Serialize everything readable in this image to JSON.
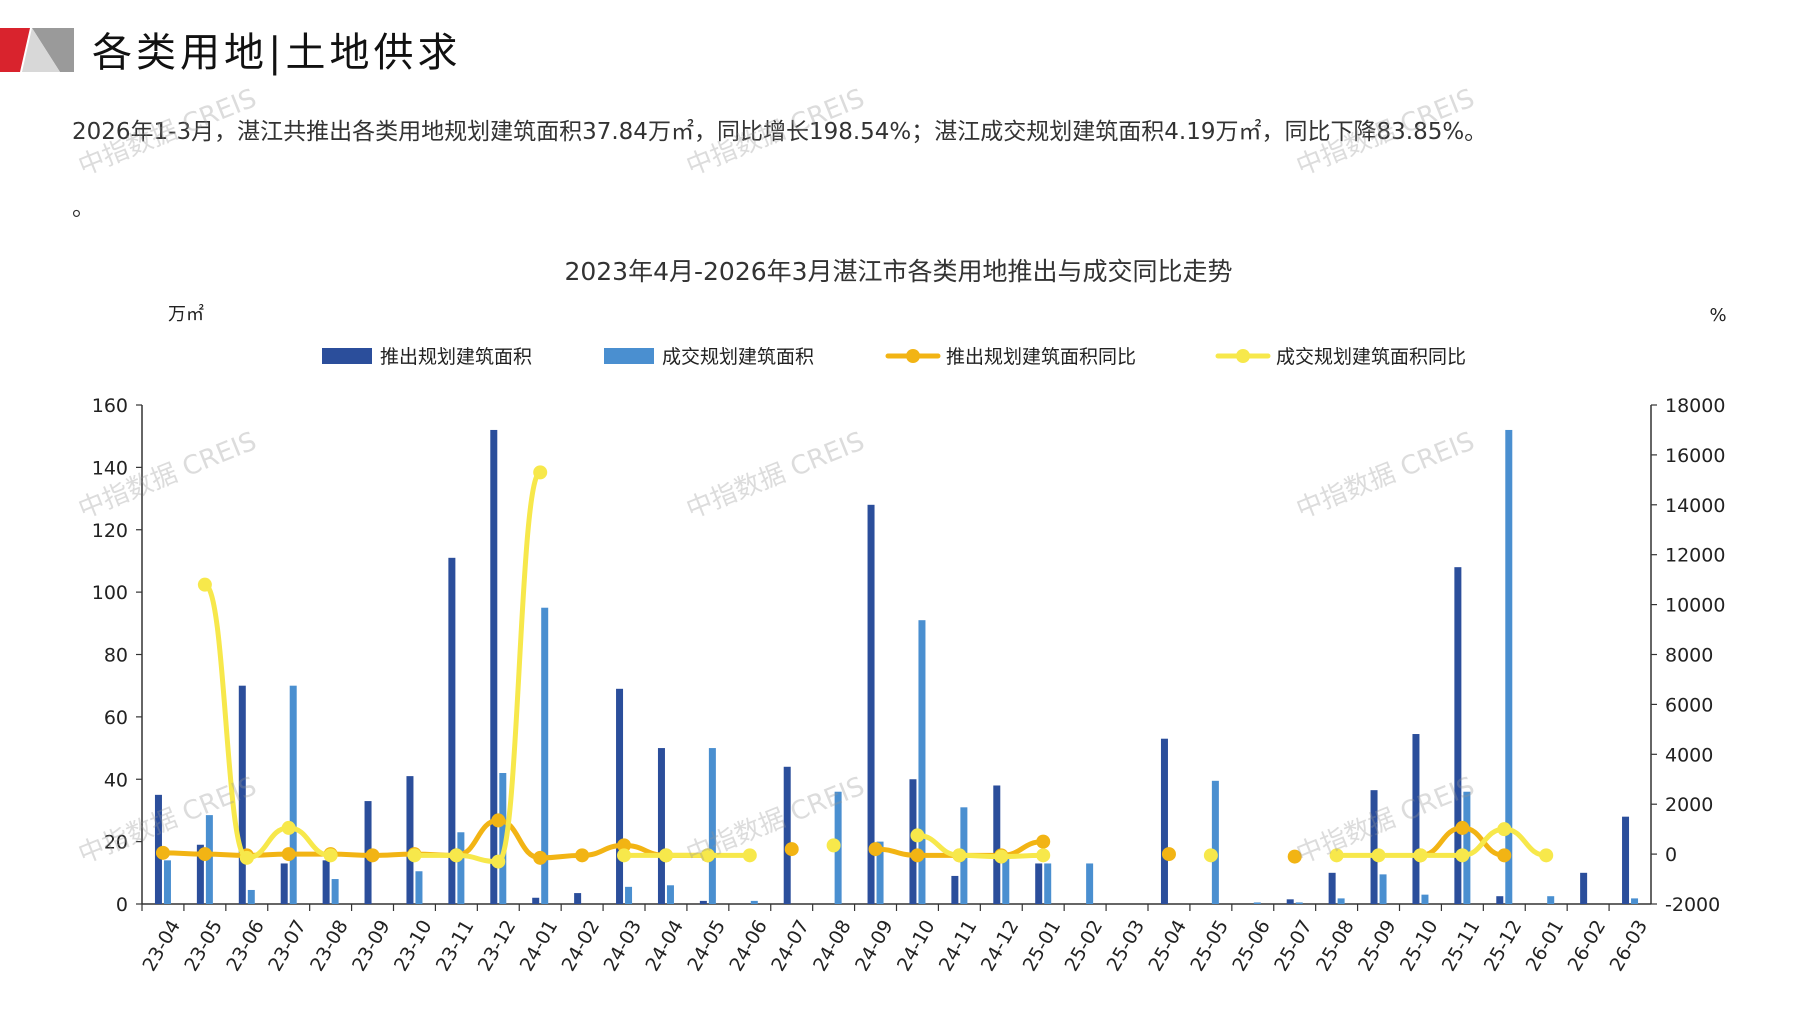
{
  "page": {
    "title": "各类用地|土地供求",
    "summary": "2026年1-3月，湛江共推出各类用地规划建筑面积37.84万㎡，同比增长198.54%；湛江成交规划建筑面积4.19万㎡，同比下降83.85%。",
    "summary_tail": "。",
    "watermark": "中指数据 CREIS"
  },
  "colors": {
    "supply_bar": "#2b4e9b",
    "deal_bar": "#4a8fd0",
    "supply_yoy": "#f2b414",
    "deal_yoy": "#f7e84b",
    "axis": "#333333",
    "logo_red": "#d9232d",
    "logo_gray": "#9a9a9a"
  },
  "chart_data": {
    "type": "bar",
    "title": "2023年4月-2026年3月湛江市各类用地推出与成交同比走势",
    "ylabel_left": "万㎡",
    "ylabel_right": "%",
    "ylim_left": [
      0,
      160
    ],
    "yticks_left": [
      0,
      20,
      40,
      60,
      80,
      100,
      120,
      140,
      160
    ],
    "ylim_right": [
      -2000,
      18000
    ],
    "yticks_right": [
      -2000,
      0,
      2000,
      4000,
      6000,
      8000,
      10000,
      12000,
      14000,
      16000,
      18000
    ],
    "legend_position": "top-center",
    "categories": [
      "23-04",
      "23-05",
      "23-06",
      "23-07",
      "23-08",
      "23-09",
      "23-10",
      "23-11",
      "23-12",
      "24-01",
      "24-02",
      "24-03",
      "24-04",
      "24-05",
      "24-06",
      "24-07",
      "24-08",
      "24-09",
      "24-10",
      "24-11",
      "24-12",
      "25-01",
      "25-02",
      "25-03",
      "25-04",
      "25-05",
      "25-06",
      "25-07",
      "25-08",
      "25-09",
      "25-10",
      "25-11",
      "25-12",
      "26-01",
      "26-02",
      "26-03"
    ],
    "series": [
      {
        "name": "推出规划建筑面积",
        "kind": "bar",
        "axis": "left",
        "values": [
          35,
          19,
          70,
          13,
          14,
          33,
          41,
          111,
          152,
          2,
          3.5,
          69,
          50,
          1,
          0,
          44,
          0,
          128,
          40,
          9,
          38,
          13,
          0,
          0,
          53,
          0,
          0,
          1.5,
          10,
          36.5,
          54.5,
          108,
          2.5,
          0,
          10,
          28
        ]
      },
      {
        "name": "成交规划建筑面积",
        "kind": "bar",
        "axis": "left",
        "values": [
          14,
          28.5,
          4.5,
          70,
          8,
          0,
          10.5,
          23,
          42,
          95,
          0,
          5.5,
          6,
          50,
          1,
          0,
          36,
          20,
          91,
          31,
          15,
          13,
          13,
          0,
          0,
          39.5,
          0.5,
          0.5,
          1.8,
          9.5,
          3,
          36,
          152,
          2.5,
          0,
          1.8
        ]
      },
      {
        "name": "推出规划建筑面积同比",
        "kind": "line",
        "axis": "right",
        "values": [
          50,
          0,
          -50,
          0,
          0,
          -50,
          0,
          -50,
          1350,
          -150,
          -50,
          350,
          -50,
          -50,
          null,
          200,
          null,
          200,
          -50,
          -50,
          -50,
          500,
          null,
          null,
          0,
          null,
          null,
          -100,
          null,
          null,
          -50,
          1050,
          -50,
          null,
          null,
          null
        ]
      },
      {
        "name": "成交规划建筑面积同比",
        "kind": "line",
        "axis": "right",
        "values": [
          null,
          10800,
          -150,
          1050,
          -50,
          null,
          -50,
          -50,
          -300,
          15300,
          null,
          -50,
          -50,
          -50,
          -50,
          null,
          350,
          null,
          750,
          -50,
          -100,
          -50,
          null,
          null,
          null,
          -50,
          null,
          null,
          -50,
          -50,
          -50,
          -50,
          1000,
          -50,
          null,
          null
        ]
      }
    ]
  }
}
